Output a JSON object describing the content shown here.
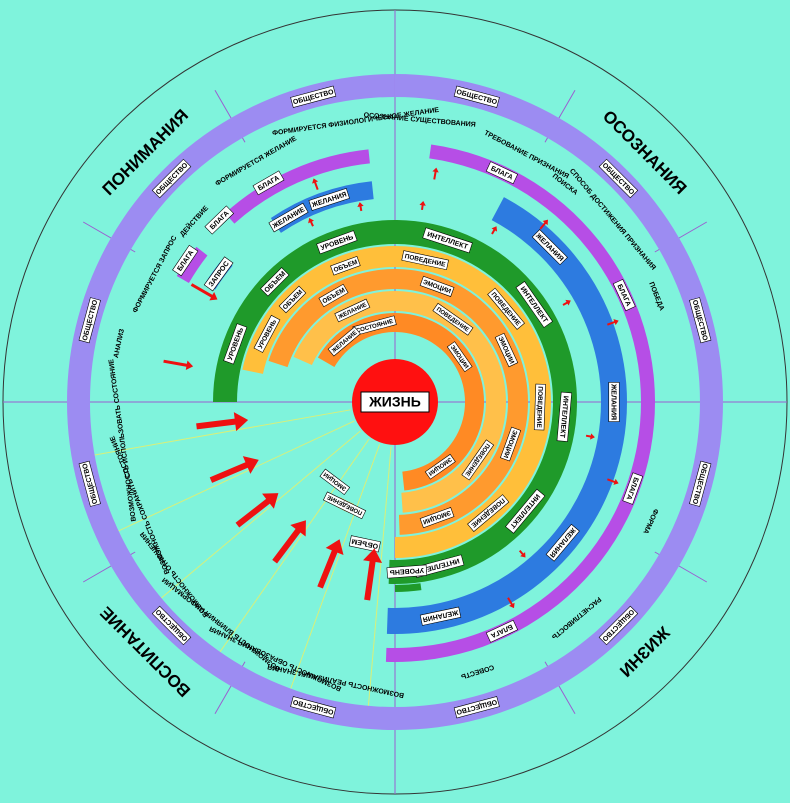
{
  "center": "ЖИЗНЬ",
  "quadrants": [
    "ПОНИМАНИЯ",
    "ОСОЗНАНИЯ",
    "ЖИЗНИ",
    "ВОСПИТАНИЕ"
  ],
  "ring_labels": {
    "society": "ОБЩЕСТВО",
    "blessings": "БЛАГА",
    "desires": "ЖЕЛАНИЯ",
    "desire": "ЖЕЛАНИЕ",
    "intellect": "ИНТЕЛЛЕКТ",
    "behavior": "ПОВЕДЕНИЕ",
    "emotions": "ЭМОЦИИ",
    "level": "УРОВЕНЬ",
    "volume": "ОБЪЕМ",
    "state": "СОСТОЯНИЕ",
    "request": "ЗАПРОС"
  },
  "sector_texts": [
    "ФОРМИРУЕТСЯ ФИЗИОЛОГИЧЕСКОЕ ЖЕЛАНИЕ",
    "ФОРМИРУЕТСЯ ЖЕЛАНИЕ",
    "ДЕЙСТВИЕ",
    "ФОРМИРУЕТСЯ ЗАПРОС",
    "АНАЛИЗ",
    "ОСОЗНАНИЕ СУЩЕСТВОВАНИЯ",
    "ТРЕБОВАНИЕ ПРИЗНАНИЯ",
    "ПОИСКА",
    "СПОСОБ ДОСТИЖЕНИЯ ПРИЗНАНИЯ",
    "ПОБЕДА",
    "ФОРМА",
    "РАСЧЕТЛИВОСТЬ",
    "СОВЕСТЬ",
    "ВОЗМОЖНОСТЬ РЕАЛИЗАЦИИ ЗНАНИЯ",
    "ВОЗМОЖНОСТЬ ОБРАЗОВАНИЯ ЗНАНИЯ",
    "ВОЗМОЖНОСТЬ ВЛИЯНИЯ ИНФОРМАЦИИ",
    "ВОЗМОЖНОСТЬ ОТНОШЕНИЯ",
    "ВОЗМОЖНОСТЬ СОХРАНИТЬ СОСТОЯНИЕ",
    "ВОЗМОЖНОСТЬ ИСПОЛЬЗОВАТЬ СОСТОЯНИЕ"
  ]
}
